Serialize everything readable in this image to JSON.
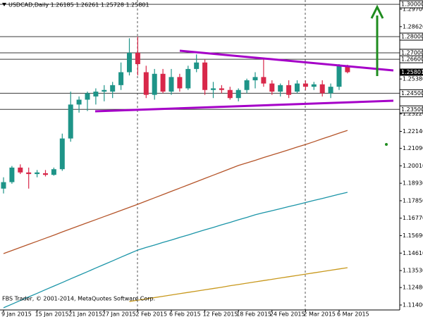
{
  "chart_data": {
    "type": "candlestick",
    "header": "USDCAD,Daily  1.26185 1.26261 1.25728 1.25801",
    "footer": "FBS Trader, © 2001-2014, MetaQuotes Software Corp.",
    "categories": [
      "9 Jan 2015",
      null,
      null,
      null,
      "15 Jan 2015",
      null,
      null,
      null,
      "21 Jan 2015",
      null,
      null,
      null,
      "27 Jan 2015",
      null,
      null,
      null,
      "2 Feb 2015",
      null,
      null,
      null,
      "6 Feb 2015",
      null,
      null,
      null,
      "12 Feb 2015",
      null,
      null,
      null,
      "18 Feb 2015",
      null,
      null,
      null,
      "24 Feb 2015",
      null,
      null,
      null,
      "2 Mar 2015",
      null,
      null,
      null,
      "6 Mar 2015",
      null
    ],
    "open": [
      1.186,
      1.19,
      1.199,
      1.196,
      1.195,
      1.1955,
      1.1945,
      1.198,
      1.217,
      1.238,
      1.241,
      1.243,
      1.246,
      1.246,
      1.25,
      1.258,
      1.27,
      1.258,
      1.244,
      1.257,
      1.246,
      1.255,
      1.248,
      1.26,
      1.264,
      1.247,
      1.248,
      1.247,
      1.242,
      1.247,
      1.253,
      1.255,
      1.251,
      1.246,
      1.25,
      1.246,
      1.251,
      1.249,
      1.2505,
      1.245,
      1.249,
      1.26185
    ],
    "high": [
      1.193,
      1.2,
      1.201,
      1.199,
      1.1975,
      1.1975,
      1.199,
      1.22,
      1.246,
      1.243,
      1.246,
      1.248,
      1.25,
      1.252,
      1.264,
      1.279,
      1.28,
      1.262,
      1.26,
      1.26,
      1.26,
      1.257,
      1.262,
      1.269,
      1.266,
      1.252,
      1.25,
      1.249,
      1.248,
      1.254,
      1.258,
      1.266,
      1.253,
      1.251,
      1.253,
      1.253,
      1.253,
      1.252,
      1.253,
      1.251,
      1.263,
      1.26261
    ],
    "low": [
      1.183,
      1.189,
      1.195,
      1.186,
      1.193,
      1.1935,
      1.194,
      1.197,
      1.215,
      1.233,
      1.234,
      1.238,
      1.24,
      1.242,
      1.247,
      1.256,
      1.256,
      1.242,
      1.241,
      1.245,
      1.244,
      1.246,
      1.247,
      1.258,
      1.244,
      1.242,
      1.245,
      1.241,
      1.24,
      1.245,
      1.248,
      1.249,
      1.244,
      1.243,
      1.242,
      1.245,
      1.247,
      1.247,
      1.243,
      1.242,
      1.247,
      1.25728
    ],
    "close": [
      1.19,
      1.199,
      1.196,
      1.195,
      1.196,
      1.1945,
      1.198,
      1.217,
      1.238,
      1.241,
      1.245,
      1.246,
      1.247,
      1.25,
      1.258,
      1.27,
      1.263,
      1.244,
      1.257,
      1.246,
      1.255,
      1.248,
      1.26,
      1.264,
      1.247,
      1.248,
      1.247,
      1.242,
      1.247,
      1.253,
      1.255,
      1.251,
      1.246,
      1.25,
      1.244,
      1.251,
      1.249,
      1.2505,
      1.245,
      1.249,
      1.262,
      1.25801
    ],
    "up_color": "#1e9488",
    "down_color": "#d8284a",
    "series": [
      {
        "color": "#b5552a",
        "values": [
          1.1458,
          1.1477,
          1.1496,
          1.1515,
          1.1534,
          1.1553,
          1.1572,
          1.1592,
          1.1611,
          1.163,
          1.1649,
          1.1668,
          1.1687,
          1.1706,
          1.1725,
          1.1744,
          1.1763,
          1.1783,
          1.1803,
          1.1823,
          1.1843,
          1.1863,
          1.1883,
          1.1903,
          1.1923,
          1.1943,
          1.1963,
          1.1983,
          1.2003,
          1.2019,
          1.2035,
          1.2052,
          1.2068,
          1.2084,
          1.21,
          1.2117,
          1.2133,
          1.215,
          1.2168,
          1.2185,
          1.2203,
          1.222
        ]
      },
      {
        "color": "#1b95a8",
        "values": [
          1.1123,
          1.1145,
          1.1168,
          1.119,
          1.1212,
          1.1235,
          1.1257,
          1.1279,
          1.1302,
          1.1324,
          1.1346,
          1.1369,
          1.1391,
          1.1413,
          1.1436,
          1.1458,
          1.148,
          1.1496,
          1.1511,
          1.1527,
          1.1542,
          1.1558,
          1.1573,
          1.1589,
          1.1605,
          1.162,
          1.1636,
          1.1651,
          1.1667,
          1.1682,
          1.1698,
          1.1711,
          1.1723,
          1.1736,
          1.1749,
          1.1761,
          1.1774,
          1.1787,
          1.1799,
          1.1812,
          1.1825,
          1.1837
        ]
      },
      {
        "color": "#c8981c",
        "values": [
          null,
          null,
          null,
          null,
          null,
          null,
          null,
          null,
          null,
          null,
          null,
          null,
          null,
          null,
          null,
          1.1162,
          1.117,
          1.1178,
          1.1186,
          1.1194,
          1.1202,
          1.121,
          1.1218,
          1.1226,
          1.1234,
          1.1242,
          1.125,
          1.1259,
          1.1267,
          1.1275,
          1.1283,
          1.1291,
          1.1299,
          1.1307,
          1.1315,
          1.1323,
          1.1331,
          1.1339,
          1.1347,
          1.1355,
          1.1363,
          1.1371
        ]
      }
    ],
    "levels": [
      {
        "value": 1.3,
        "label": "1.30000"
      },
      {
        "value": 1.28,
        "label": "1.28000"
      },
      {
        "value": 1.27,
        "label": "1.27000"
      },
      {
        "value": 1.266,
        "label": "1.26600"
      },
      {
        "value": 1.245,
        "label": "1.24500"
      },
      {
        "value": 1.235,
        "label": "1.23500"
      }
    ],
    "last_price": {
      "value": 1.25801,
      "label": "1.25801"
    },
    "ylim": [
      1.11094,
      1.30266
    ],
    "yticks": [
      {
        "value": 1.297,
        "label": "1.29700"
      },
      {
        "value": 1.2862,
        "label": "1.28620"
      },
      {
        "value": 1.2538,
        "label": "1.25380"
      },
      {
        "value": 1.2322,
        "label": "1.23220"
      },
      {
        "value": 1.2214,
        "label": "1.22140"
      },
      {
        "value": 1.2109,
        "label": "1.21090"
      },
      {
        "value": 1.2001,
        "label": "1.20010"
      },
      {
        "value": 1.1893,
        "label": "1.18930"
      },
      {
        "value": 1.1785,
        "label": "1.17850"
      },
      {
        "value": 1.1677,
        "label": "1.16770"
      },
      {
        "value": 1.1569,
        "label": "1.15690"
      },
      {
        "value": 1.1461,
        "label": "1.14610"
      },
      {
        "value": 1.1353,
        "label": "1.13530"
      },
      {
        "value": 1.1248,
        "label": "1.12480"
      },
      {
        "value": 1.114,
        "label": "1.11400"
      }
    ]
  }
}
